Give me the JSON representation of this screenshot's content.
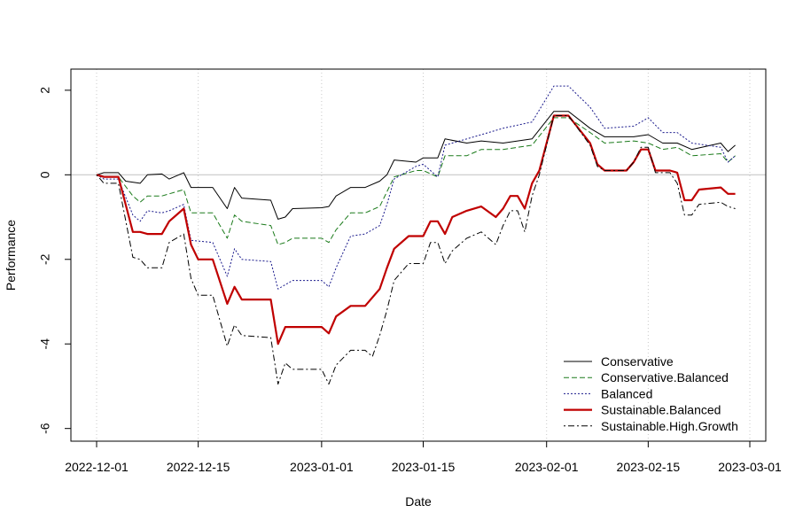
{
  "chart_data": {
    "type": "line",
    "title": "",
    "xlabel": "Date",
    "ylabel": "Performance",
    "x_ticks": [
      "2022-12-01",
      "2022-12-15",
      "2023-01-01",
      "2023-01-15",
      "2023-02-01",
      "2023-02-15",
      "2023-03-01"
    ],
    "y_ticks": [
      -6,
      -4,
      -2,
      0,
      2
    ],
    "xlim": [
      "2022-12-01",
      "2023-03-01"
    ],
    "ylim": [
      -6.3,
      2.5
    ],
    "grid": "vertical dotted at date ticks",
    "hline": 0,
    "legend_position": "bottom-right",
    "series": [
      {
        "name": "Conservative",
        "color": "#000000",
        "dash": "solid",
        "points": [
          [
            "2022-12-01",
            0
          ],
          [
            "2022-12-02",
            0.05
          ],
          [
            "2022-12-04",
            0.05
          ],
          [
            "2022-12-05",
            -0.15
          ],
          [
            "2022-12-07",
            -0.2
          ],
          [
            "2022-12-08",
            0
          ],
          [
            "2022-12-10",
            0.02
          ],
          [
            "2022-12-11",
            -0.1
          ],
          [
            "2022-12-13",
            0.05
          ],
          [
            "2022-12-14",
            -0.3
          ],
          [
            "2022-12-17",
            -0.3
          ],
          [
            "2022-12-19",
            -0.8
          ],
          [
            "2022-12-20",
            -0.3
          ],
          [
            "2022-12-21",
            -0.55
          ],
          [
            "2022-12-25",
            -0.6
          ],
          [
            "2022-12-26",
            -1.05
          ],
          [
            "2022-12-27",
            -1
          ],
          [
            "2022-12-28",
            -0.8
          ],
          [
            "2023-01-01",
            -0.78
          ],
          [
            "2023-01-02",
            -0.75
          ],
          [
            "2023-01-03",
            -0.5
          ],
          [
            "2023-01-05",
            -0.3
          ],
          [
            "2023-01-07",
            -0.3
          ],
          [
            "2023-01-09",
            -0.15
          ],
          [
            "2023-01-10",
            0
          ],
          [
            "2023-01-11",
            0.35
          ],
          [
            "2023-01-14",
            0.3
          ],
          [
            "2023-01-15",
            0.4
          ],
          [
            "2023-01-17",
            0.4
          ],
          [
            "2023-01-18",
            0.85
          ],
          [
            "2023-01-21",
            0.75
          ],
          [
            "2023-01-23",
            0.8
          ],
          [
            "2023-01-26",
            0.75
          ],
          [
            "2023-01-30",
            0.85
          ],
          [
            "2023-02-02",
            1.5
          ],
          [
            "2023-02-04",
            1.5
          ],
          [
            "2023-02-07",
            1.1
          ],
          [
            "2023-02-09",
            0.9
          ],
          [
            "2023-02-13",
            0.9
          ],
          [
            "2023-02-15",
            0.95
          ],
          [
            "2023-02-17",
            0.75
          ],
          [
            "2023-02-19",
            0.75
          ],
          [
            "2023-02-21",
            0.6
          ],
          [
            "2023-02-25",
            0.75
          ],
          [
            "2023-02-26",
            0.55
          ],
          [
            "2023-02-27",
            0.7
          ]
        ]
      },
      {
        "name": "Conservative.Balanced",
        "color": "#1a7a1a",
        "dash": "dashed",
        "points": [
          [
            "2022-12-01",
            0
          ],
          [
            "2022-12-02",
            -0.05
          ],
          [
            "2022-12-04",
            -0.05
          ],
          [
            "2022-12-06",
            -0.5
          ],
          [
            "2022-12-07",
            -0.65
          ],
          [
            "2022-12-08",
            -0.5
          ],
          [
            "2022-12-10",
            -0.5
          ],
          [
            "2022-12-11",
            -0.45
          ],
          [
            "2022-12-13",
            -0.35
          ],
          [
            "2022-12-14",
            -0.9
          ],
          [
            "2022-12-17",
            -0.9
          ],
          [
            "2022-12-19",
            -1.5
          ],
          [
            "2022-12-20",
            -0.95
          ],
          [
            "2022-12-21",
            -1.1
          ],
          [
            "2022-12-25",
            -1.2
          ],
          [
            "2022-12-26",
            -1.65
          ],
          [
            "2022-12-27",
            -1.6
          ],
          [
            "2022-12-28",
            -1.5
          ],
          [
            "2023-01-01",
            -1.5
          ],
          [
            "2023-01-02",
            -1.6
          ],
          [
            "2023-01-03",
            -1.3
          ],
          [
            "2023-01-05",
            -0.9
          ],
          [
            "2023-01-07",
            -0.9
          ],
          [
            "2023-01-09",
            -0.75
          ],
          [
            "2023-01-10",
            -0.4
          ],
          [
            "2023-01-11",
            -0.05
          ],
          [
            "2023-01-14",
            0.1
          ],
          [
            "2023-01-15",
            0.1
          ],
          [
            "2023-01-17",
            -0.05
          ],
          [
            "2023-01-18",
            0.45
          ],
          [
            "2023-01-21",
            0.45
          ],
          [
            "2023-01-23",
            0.6
          ],
          [
            "2023-01-26",
            0.6
          ],
          [
            "2023-01-30",
            0.7
          ],
          [
            "2023-02-02",
            1.35
          ],
          [
            "2023-02-04",
            1.35
          ],
          [
            "2023-02-07",
            1
          ],
          [
            "2023-02-09",
            0.75
          ],
          [
            "2023-02-13",
            0.8
          ],
          [
            "2023-02-15",
            0.75
          ],
          [
            "2023-02-17",
            0.6
          ],
          [
            "2023-02-19",
            0.65
          ],
          [
            "2023-02-21",
            0.45
          ],
          [
            "2023-02-25",
            0.5
          ],
          [
            "2023-02-26",
            0.3
          ],
          [
            "2023-02-27",
            0.45
          ]
        ]
      },
      {
        "name": "Balanced",
        "color": "#1a1a8c",
        "dash": "dotted",
        "points": [
          [
            "2022-12-01",
            0
          ],
          [
            "2022-12-02",
            -0.1
          ],
          [
            "2022-12-04",
            -0.1
          ],
          [
            "2022-12-06",
            -0.95
          ],
          [
            "2022-12-07",
            -1.1
          ],
          [
            "2022-12-08",
            -0.85
          ],
          [
            "2022-12-10",
            -0.9
          ],
          [
            "2022-12-11",
            -0.85
          ],
          [
            "2022-12-13",
            -0.7
          ],
          [
            "2022-12-14",
            -1.55
          ],
          [
            "2022-12-17",
            -1.6
          ],
          [
            "2022-12-19",
            -2.4
          ],
          [
            "2022-12-20",
            -1.75
          ],
          [
            "2022-12-21",
            -2.0
          ],
          [
            "2022-12-25",
            -2.05
          ],
          [
            "2022-12-26",
            -2.7
          ],
          [
            "2022-12-27",
            -2.6
          ],
          [
            "2022-12-28",
            -2.5
          ],
          [
            "2023-01-01",
            -2.5
          ],
          [
            "2023-01-02",
            -2.65
          ],
          [
            "2023-01-03",
            -2.2
          ],
          [
            "2023-01-05",
            -1.45
          ],
          [
            "2023-01-07",
            -1.4
          ],
          [
            "2023-01-09",
            -1.2
          ],
          [
            "2023-01-10",
            -0.7
          ],
          [
            "2023-01-11",
            -0.1
          ],
          [
            "2023-01-14",
            0.2
          ],
          [
            "2023-01-15",
            0.25
          ],
          [
            "2023-01-17",
            -0.05
          ],
          [
            "2023-01-18",
            0.7
          ],
          [
            "2023-01-21",
            0.85
          ],
          [
            "2023-01-23",
            0.95
          ],
          [
            "2023-01-26",
            1.1
          ],
          [
            "2023-01-30",
            1.25
          ],
          [
            "2023-02-02",
            2.1
          ],
          [
            "2023-02-04",
            2.1
          ],
          [
            "2023-02-07",
            1.6
          ],
          [
            "2023-02-09",
            1.1
          ],
          [
            "2023-02-13",
            1.15
          ],
          [
            "2023-02-15",
            1.35
          ],
          [
            "2023-02-17",
            1
          ],
          [
            "2023-02-19",
            1
          ],
          [
            "2023-02-21",
            0.75
          ],
          [
            "2023-02-25",
            0.65
          ],
          [
            "2023-02-26",
            0.3
          ],
          [
            "2023-02-27",
            0.45
          ]
        ]
      },
      {
        "name": "Sustainable.Balanced",
        "color": "#c00000",
        "dash": "solid-thick",
        "points": [
          [
            "2022-12-01",
            0
          ],
          [
            "2022-12-02",
            -0.05
          ],
          [
            "2022-12-04",
            -0.05
          ],
          [
            "2022-12-06",
            -1.35
          ],
          [
            "2022-12-07",
            -1.35
          ],
          [
            "2022-12-08",
            -1.4
          ],
          [
            "2022-12-10",
            -1.4
          ],
          [
            "2022-12-11",
            -1.1
          ],
          [
            "2022-12-13",
            -0.8
          ],
          [
            "2022-12-14",
            -1.65
          ],
          [
            "2022-12-15",
            -2.0
          ],
          [
            "2022-12-17",
            -2.0
          ],
          [
            "2022-12-19",
            -3.05
          ],
          [
            "2022-12-20",
            -2.65
          ],
          [
            "2022-12-21",
            -2.95
          ],
          [
            "2022-12-25",
            -2.95
          ],
          [
            "2022-12-26",
            -4.0
          ],
          [
            "2022-12-27",
            -3.6
          ],
          [
            "2022-12-28",
            -3.6
          ],
          [
            "2023-01-01",
            -3.6
          ],
          [
            "2023-01-02",
            -3.75
          ],
          [
            "2023-01-03",
            -3.35
          ],
          [
            "2023-01-05",
            -3.1
          ],
          [
            "2023-01-07",
            -3.1
          ],
          [
            "2023-01-09",
            -2.7
          ],
          [
            "2023-01-10",
            -2.2
          ],
          [
            "2023-01-11",
            -1.75
          ],
          [
            "2023-01-13",
            -1.45
          ],
          [
            "2023-01-15",
            -1.45
          ],
          [
            "2023-01-16",
            -1.1
          ],
          [
            "2023-01-17",
            -1.1
          ],
          [
            "2023-01-18",
            -1.4
          ],
          [
            "2023-01-19",
            -1.0
          ],
          [
            "2023-01-21",
            -0.85
          ],
          [
            "2023-01-23",
            -0.75
          ],
          [
            "2023-01-25",
            -1.0
          ],
          [
            "2023-01-26",
            -0.8
          ],
          [
            "2023-01-27",
            -0.5
          ],
          [
            "2023-01-28",
            -0.5
          ],
          [
            "2023-01-29",
            -0.8
          ],
          [
            "2023-01-30",
            -0.2
          ],
          [
            "2023-01-31",
            0.1
          ],
          [
            "2023-02-02",
            1.4
          ],
          [
            "2023-02-04",
            1.4
          ],
          [
            "2023-02-07",
            0.75
          ],
          [
            "2023-02-08",
            0.25
          ],
          [
            "2023-02-09",
            0.1
          ],
          [
            "2023-02-12",
            0.1
          ],
          [
            "2023-02-13",
            0.3
          ],
          [
            "2023-02-14",
            0.6
          ],
          [
            "2023-02-15",
            0.6
          ],
          [
            "2023-02-16",
            0.1
          ],
          [
            "2023-02-18",
            0.1
          ],
          [
            "2023-02-19",
            0.05
          ],
          [
            "2023-02-20",
            -0.6
          ],
          [
            "2023-02-21",
            -0.6
          ],
          [
            "2023-02-22",
            -0.35
          ],
          [
            "2023-02-25",
            -0.3
          ],
          [
            "2023-02-26",
            -0.45
          ],
          [
            "2023-02-27",
            -0.45
          ]
        ]
      },
      {
        "name": "Sustainable.High.Growth",
        "color": "#000000",
        "dash": "dashdot",
        "points": [
          [
            "2022-12-01",
            0
          ],
          [
            "2022-12-02",
            -0.2
          ],
          [
            "2022-12-04",
            -0.2
          ],
          [
            "2022-12-06",
            -1.95
          ],
          [
            "2022-12-07",
            -2.0
          ],
          [
            "2022-12-08",
            -2.2
          ],
          [
            "2022-12-10",
            -2.2
          ],
          [
            "2022-12-11",
            -1.6
          ],
          [
            "2022-12-13",
            -1.4
          ],
          [
            "2022-12-14",
            -2.45
          ],
          [
            "2022-12-15",
            -2.85
          ],
          [
            "2022-12-17",
            -2.85
          ],
          [
            "2022-12-19",
            -4.05
          ],
          [
            "2022-12-20",
            -3.55
          ],
          [
            "2022-12-21",
            -3.8
          ],
          [
            "2022-12-25",
            -3.85
          ],
          [
            "2022-12-26",
            -4.95
          ],
          [
            "2022-12-27",
            -4.45
          ],
          [
            "2022-12-28",
            -4.6
          ],
          [
            "2023-01-01",
            -4.6
          ],
          [
            "2023-01-02",
            -4.95
          ],
          [
            "2023-01-03",
            -4.5
          ],
          [
            "2023-01-05",
            -4.15
          ],
          [
            "2023-01-07",
            -4.15
          ],
          [
            "2023-01-08",
            -4.3
          ],
          [
            "2023-01-09",
            -3.8
          ],
          [
            "2023-01-10",
            -3.2
          ],
          [
            "2023-01-11",
            -2.5
          ],
          [
            "2023-01-13",
            -2.1
          ],
          [
            "2023-01-15",
            -2.1
          ],
          [
            "2023-01-16",
            -1.6
          ],
          [
            "2023-01-17",
            -1.6
          ],
          [
            "2023-01-18",
            -2.1
          ],
          [
            "2023-01-19",
            -1.8
          ],
          [
            "2023-01-21",
            -1.5
          ],
          [
            "2023-01-23",
            -1.35
          ],
          [
            "2023-01-25",
            -1.65
          ],
          [
            "2023-01-26",
            -1.2
          ],
          [
            "2023-01-27",
            -0.85
          ],
          [
            "2023-01-28",
            -0.85
          ],
          [
            "2023-01-29",
            -1.35
          ],
          [
            "2023-01-30",
            -0.5
          ],
          [
            "2023-01-31",
            0.0
          ],
          [
            "2023-02-02",
            1.4
          ],
          [
            "2023-02-04",
            1.4
          ],
          [
            "2023-02-07",
            0.7
          ],
          [
            "2023-02-08",
            0.2
          ],
          [
            "2023-02-09",
            0.1
          ],
          [
            "2023-02-12",
            0.1
          ],
          [
            "2023-02-13",
            0.3
          ],
          [
            "2023-02-14",
            0.65
          ],
          [
            "2023-02-15",
            0.65
          ],
          [
            "2023-02-16",
            0.05
          ],
          [
            "2023-02-18",
            0.05
          ],
          [
            "2023-02-19",
            -0.2
          ],
          [
            "2023-02-20",
            -0.95
          ],
          [
            "2023-02-21",
            -0.95
          ],
          [
            "2023-02-22",
            -0.7
          ],
          [
            "2023-02-25",
            -0.65
          ],
          [
            "2023-02-26",
            -0.75
          ],
          [
            "2023-02-27",
            -0.8
          ]
        ]
      }
    ]
  }
}
